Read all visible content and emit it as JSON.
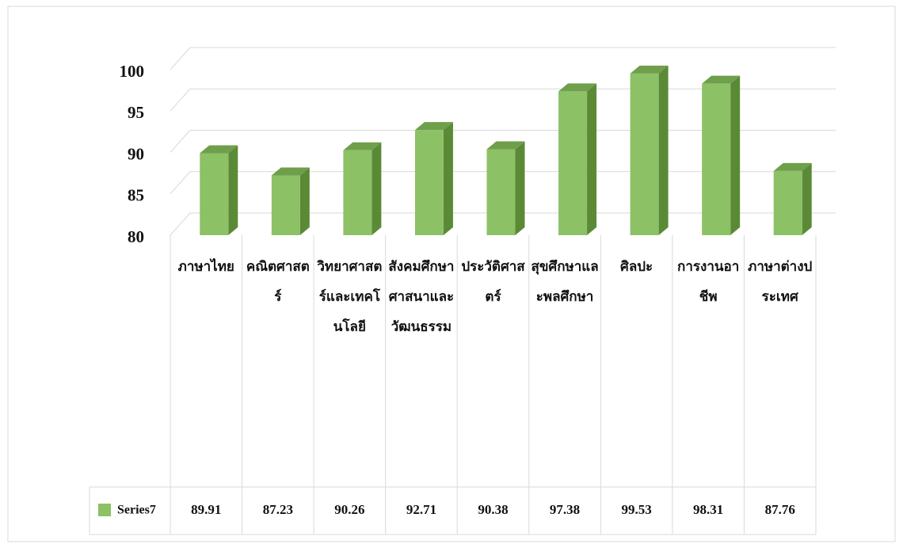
{
  "chart_data": {
    "type": "bar3d",
    "categories": [
      "ภาษาไทย",
      "คณิตศาสตร์",
      "วิทยาศาสตร์และเทคโนโลยี",
      "สังคมศึกษา ศาสนาและวัฒนธรรม",
      "ประวัติศาสตร์",
      "สุขศึกษาและพลศึกษา",
      "ศิลปะ",
      "การงานอาชีพ",
      "ภาษาต่างประเทศ"
    ],
    "series": [
      {
        "name": "Series7",
        "color": "#8cc166",
        "values": [
          89.91,
          87.23,
          90.26,
          92.71,
          90.38,
          97.38,
          99.53,
          98.31,
          87.76
        ]
      }
    ],
    "ylim": [
      80,
      100
    ],
    "yticks": [
      80,
      85,
      90,
      95,
      100
    ],
    "grid": true,
    "data_table": true
  }
}
